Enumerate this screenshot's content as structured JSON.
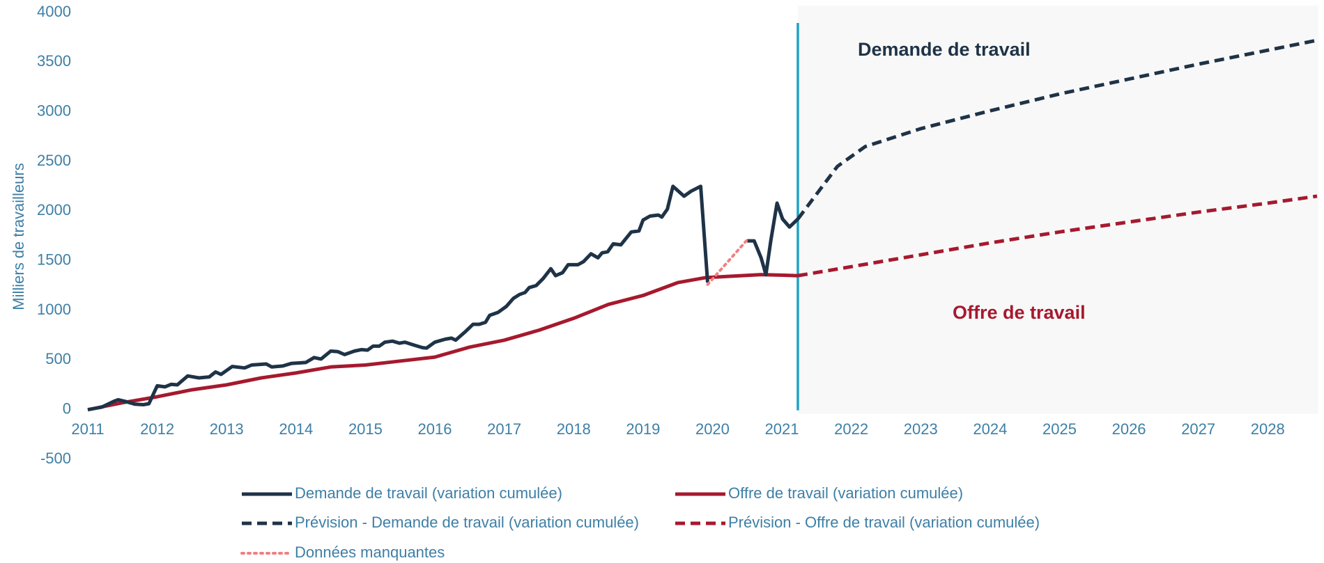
{
  "chart_data": {
    "type": "line",
    "y_label": "Milliers de travailleurs",
    "xlim": [
      2011,
      2028.71
    ],
    "xticks": [
      2011,
      2012,
      2013,
      2014,
      2015,
      2016,
      2017,
      2018,
      2019,
      2020,
      2021,
      2022,
      2023,
      2024,
      2025,
      2026,
      2027,
      2028
    ],
    "ylim": [
      -500,
      4000
    ],
    "yticks": [
      -500,
      0,
      500,
      1000,
      1500,
      2000,
      2500,
      3000,
      3500,
      4000
    ],
    "grid": false,
    "annotations": [
      {
        "text": "Demande de travail",
        "color": "#1f3347"
      },
      {
        "text": "Offre de travail",
        "color": "#a6192e"
      }
    ],
    "series": [
      {
        "name": "Demande de travail (variation cumulée)",
        "color": "#1f3347",
        "dash": "solid",
        "x": [
          2011.0,
          2011.2,
          2011.38,
          2011.44,
          2011.56,
          2011.68,
          2011.8,
          2011.88,
          2012.0,
          2012.11,
          2012.2,
          2012.29,
          2012.44,
          2012.6,
          2012.75,
          2012.84,
          2012.92,
          2013.08,
          2013.26,
          2013.36,
          2013.57,
          2013.65,
          2013.81,
          2013.93,
          2014.14,
          2014.26,
          2014.36,
          2014.5,
          2014.6,
          2014.7,
          2014.84,
          2014.94,
          2015.03,
          2015.11,
          2015.2,
          2015.28,
          2015.39,
          2015.49,
          2015.57,
          2015.7,
          2015.82,
          2015.88,
          2016.0,
          2016.15,
          2016.24,
          2016.3,
          2016.43,
          2016.55,
          2016.64,
          2016.73,
          2016.79,
          2016.91,
          2017.03,
          2017.13,
          2017.22,
          2017.3,
          2017.36,
          2017.46,
          2017.56,
          2017.67,
          2017.74,
          2017.84,
          2017.92,
          2018.06,
          2018.14,
          2018.25,
          2018.35,
          2018.41,
          2018.49,
          2018.57,
          2018.68,
          2018.76,
          2018.83,
          2018.94,
          2019.0,
          2019.1,
          2019.22,
          2019.27,
          2019.35,
          2019.43,
          2019.59,
          2019.69,
          2019.83,
          2019.93,
          2020.2,
          2020.5,
          2020.6,
          2020.7,
          2020.77,
          2020.84,
          2020.93,
          2021.01,
          2021.11,
          2021.23
        ],
        "values": [
          0,
          25,
          85,
          100,
          80,
          55,
          50,
          60,
          240,
          230,
          255,
          250,
          340,
          320,
          330,
          380,
          355,
          435,
          420,
          450,
          460,
          430,
          440,
          465,
          475,
          525,
          510,
          590,
          585,
          555,
          590,
          605,
          600,
          640,
          640,
          680,
          690,
          670,
          680,
          650,
          625,
          620,
          680,
          710,
          720,
          700,
          780,
          860,
          860,
          880,
          950,
          980,
          1040,
          1120,
          1160,
          1180,
          1230,
          1250,
          1320,
          1420,
          1350,
          1380,
          1460,
          1460,
          1490,
          1570,
          1530,
          1580,
          1590,
          1670,
          1660,
          1730,
          1790,
          1800,
          1910,
          1950,
          1960,
          1940,
          2020,
          2250,
          2150,
          2200,
          2250,
          1280,
          null,
          1700,
          1700,
          1530,
          1360,
          1700,
          2080,
          1920,
          1840,
          1920
        ]
      },
      {
        "name": "Offre de travail (variation cumulée)",
        "color": "#a6192e",
        "dash": "solid",
        "x": [
          2011.0,
          2011.5,
          2012.0,
          2012.5,
          2013.0,
          2013.5,
          2014.0,
          2014.5,
          2015.0,
          2015.5,
          2016.0,
          2016.5,
          2017.0,
          2017.5,
          2018.0,
          2018.5,
          2019.0,
          2019.5,
          2019.9,
          2020.3,
          2020.7,
          2021.0,
          2021.23
        ],
        "values": [
          0,
          70,
          130,
          200,
          250,
          320,
          370,
          430,
          450,
          490,
          530,
          630,
          700,
          800,
          920,
          1060,
          1150,
          1280,
          1330,
          1345,
          1360,
          1355,
          1350
        ]
      },
      {
        "name": "Prévision - Demande de travail (variation cumulée)",
        "color": "#1f3347",
        "dash": "dashed",
        "x": [
          2021.23,
          2021.8,
          2022.2,
          2023.0,
          2024.0,
          2025.0,
          2026.0,
          2027.0,
          2028.0,
          2028.71
        ],
        "values": [
          1920,
          2450,
          2650,
          2830,
          3010,
          3180,
          3330,
          3480,
          3620,
          3720
        ]
      },
      {
        "name": "Prévision - Offre de travail (variation cumulée)",
        "color": "#a6192e",
        "dash": "dashed",
        "x": [
          2021.23,
          2022.0,
          2023.0,
          2024.0,
          2025.0,
          2026.0,
          2027.0,
          2028.0,
          2028.71
        ],
        "values": [
          1350,
          1440,
          1560,
          1680,
          1790,
          1890,
          1990,
          2080,
          2150
        ]
      },
      {
        "name": "Données manquantes",
        "color": "#f08080",
        "dash": "dotted",
        "x": [
          2019.93,
          2020.5
        ],
        "values": [
          1260,
          1710
        ]
      }
    ]
  }
}
